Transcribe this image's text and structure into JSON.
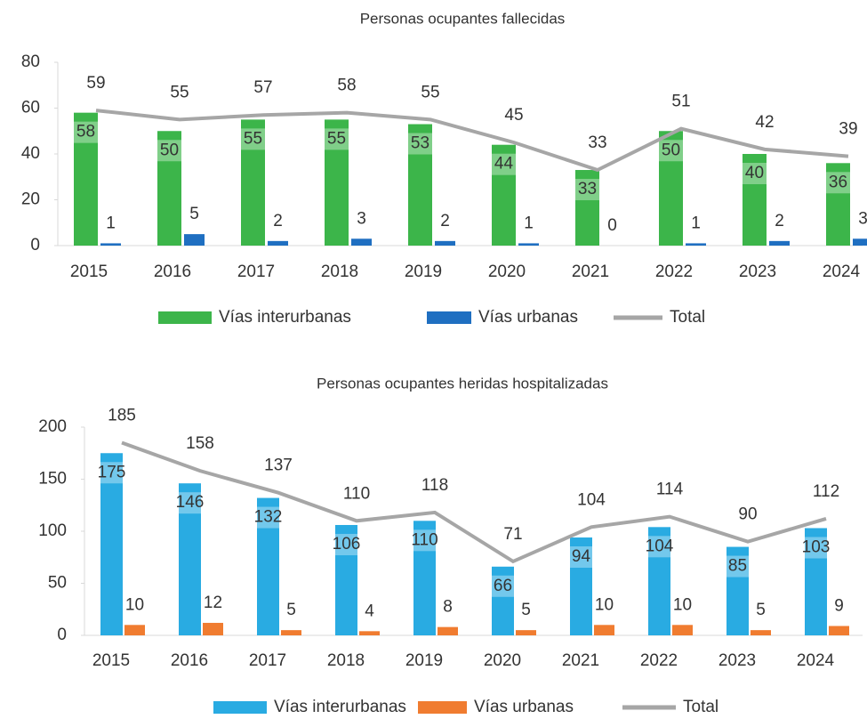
{
  "chart_data": [
    {
      "type": "bar",
      "title": "Personas ocupantes fallecidas",
      "categories": [
        "2015",
        "2016",
        "2017",
        "2018",
        "2019",
        "2020",
        "2021",
        "2022",
        "2023",
        "2024"
      ],
      "series": [
        {
          "name": "Vías interurbanas",
          "color": "#3cb54a",
          "values": [
            58,
            50,
            55,
            55,
            53,
            44,
            33,
            50,
            40,
            36
          ]
        },
        {
          "name": "Vías urbanas",
          "color": "#1f6fc1",
          "values": [
            1,
            5,
            2,
            3,
            2,
            1,
            0,
            1,
            2,
            3
          ]
        },
        {
          "name": "Total",
          "type": "line",
          "color": "#a6a6a6",
          "values": [
            59,
            55,
            57,
            58,
            55,
            45,
            33,
            51,
            42,
            39
          ]
        }
      ],
      "ylim": [
        0,
        80
      ],
      "yticks": [
        0,
        20,
        40,
        60,
        80
      ],
      "legend": "bottom"
    },
    {
      "type": "bar",
      "title": "Personas ocupantes heridas hospitalizadas",
      "categories": [
        "2015",
        "2016",
        "2017",
        "2018",
        "2019",
        "2020",
        "2021",
        "2022",
        "2023",
        "2024"
      ],
      "series": [
        {
          "name": "Vías interurbanas",
          "color": "#29abe2",
          "values": [
            175,
            146,
            132,
            106,
            110,
            66,
            94,
            104,
            85,
            103
          ]
        },
        {
          "name": "Vías urbanas",
          "color": "#f07c30",
          "values": [
            10,
            12,
            5,
            4,
            8,
            5,
            10,
            10,
            5,
            9
          ]
        },
        {
          "name": "Total",
          "type": "line",
          "color": "#a6a6a6",
          "values": [
            185,
            158,
            137,
            110,
            118,
            71,
            104,
            114,
            90,
            112
          ]
        }
      ],
      "ylim": [
        0,
        200
      ],
      "yticks": [
        0,
        50,
        100,
        150,
        200
      ],
      "legend": "bottom"
    }
  ]
}
